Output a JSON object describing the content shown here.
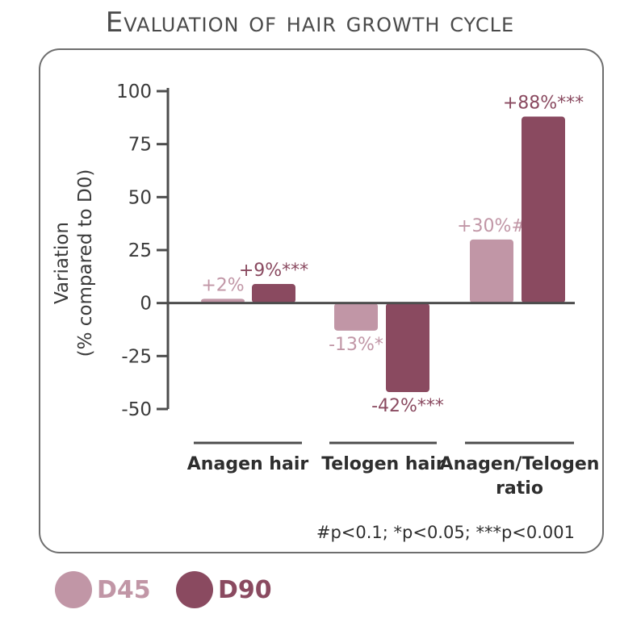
{
  "chart_data": {
    "type": "bar",
    "title": "Evaluation of hair growth cycle",
    "ylabel": [
      "Variation",
      "(% compared to D0)"
    ],
    "ylim": [
      -50,
      100
    ],
    "yticks": [
      100,
      75,
      50,
      25,
      0,
      -25,
      -50
    ],
    "categories": [
      [
        "Anagen hair"
      ],
      [
        "Telogen hair"
      ],
      [
        "Anagen/Telogen",
        "ratio"
      ]
    ],
    "series": [
      {
        "name": "D45",
        "color": "#c196a6",
        "values": [
          2,
          -13,
          30
        ],
        "labels": [
          "+2%",
          "-13%*",
          "+30%#"
        ]
      },
      {
        "name": "D90",
        "color": "#8a4a60",
        "values": [
          9,
          -42,
          88
        ],
        "labels": [
          "+9%***",
          "-42%***",
          "+88%***"
        ]
      }
    ],
    "footnote": "#p<0.1; *p<0.05; ***p<0.001",
    "legend_position": "bottom-left"
  },
  "colors": {
    "axis": "#4d4d4d",
    "text": "#3a3a3a",
    "frame": "#6e6e6e"
  }
}
